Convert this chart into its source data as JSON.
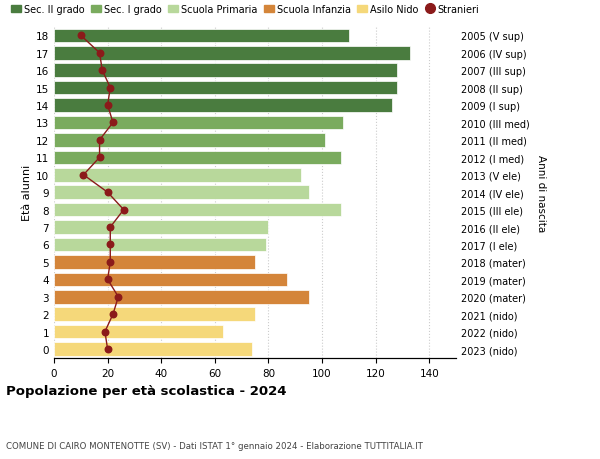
{
  "ages": [
    18,
    17,
    16,
    15,
    14,
    13,
    12,
    11,
    10,
    9,
    8,
    7,
    6,
    5,
    4,
    3,
    2,
    1,
    0
  ],
  "right_labels": [
    "2005 (V sup)",
    "2006 (IV sup)",
    "2007 (III sup)",
    "2008 (II sup)",
    "2009 (I sup)",
    "2010 (III med)",
    "2011 (II med)",
    "2012 (I med)",
    "2013 (V ele)",
    "2014 (IV ele)",
    "2015 (III ele)",
    "2016 (II ele)",
    "2017 (I ele)",
    "2018 (mater)",
    "2019 (mater)",
    "2020 (mater)",
    "2021 (nido)",
    "2022 (nido)",
    "2023 (nido)"
  ],
  "bar_values": [
    110,
    133,
    128,
    128,
    126,
    108,
    101,
    107,
    92,
    95,
    107,
    80,
    79,
    75,
    87,
    95,
    75,
    63,
    74
  ],
  "bar_colors": [
    "#4a7c3f",
    "#4a7c3f",
    "#4a7c3f",
    "#4a7c3f",
    "#4a7c3f",
    "#7aab5e",
    "#7aab5e",
    "#7aab5e",
    "#b8d89b",
    "#b8d89b",
    "#b8d89b",
    "#b8d89b",
    "#b8d89b",
    "#d4853a",
    "#d4853a",
    "#d4853a",
    "#f5d87a",
    "#f5d87a",
    "#f5d87a"
  ],
  "stranieri": [
    10,
    17,
    18,
    21,
    20,
    22,
    17,
    17,
    11,
    20,
    26,
    21,
    21,
    21,
    20,
    24,
    22,
    19,
    20
  ],
  "stranieri_color": "#8b1a1a",
  "legend_items": [
    {
      "label": "Sec. II grado",
      "color": "#4a7c3f",
      "type": "patch"
    },
    {
      "label": "Sec. I grado",
      "color": "#7aab5e",
      "type": "patch"
    },
    {
      "label": "Scuola Primaria",
      "color": "#b8d89b",
      "type": "patch"
    },
    {
      "label": "Scuola Infanzia",
      "color": "#d4853a",
      "type": "patch"
    },
    {
      "label": "Asilo Nido",
      "color": "#f5d87a",
      "type": "patch"
    },
    {
      "label": "Stranieri",
      "color": "#8b1a1a",
      "type": "dot"
    }
  ],
  "ylabel_left": "Età alunni",
  "ylabel_right": "Anni di nascita",
  "title": "Popolazione per età scolastica - 2024",
  "subtitle": "COMUNE DI CAIRO MONTENOTTE (SV) - Dati ISTAT 1° gennaio 2024 - Elaborazione TUTTITALIA.IT",
  "xlim": [
    0,
    150
  ],
  "xticks": [
    0,
    20,
    40,
    60,
    80,
    100,
    120,
    140
  ],
  "background_color": "#ffffff",
  "grid_color": "#cccccc",
  "bar_height": 0.78
}
